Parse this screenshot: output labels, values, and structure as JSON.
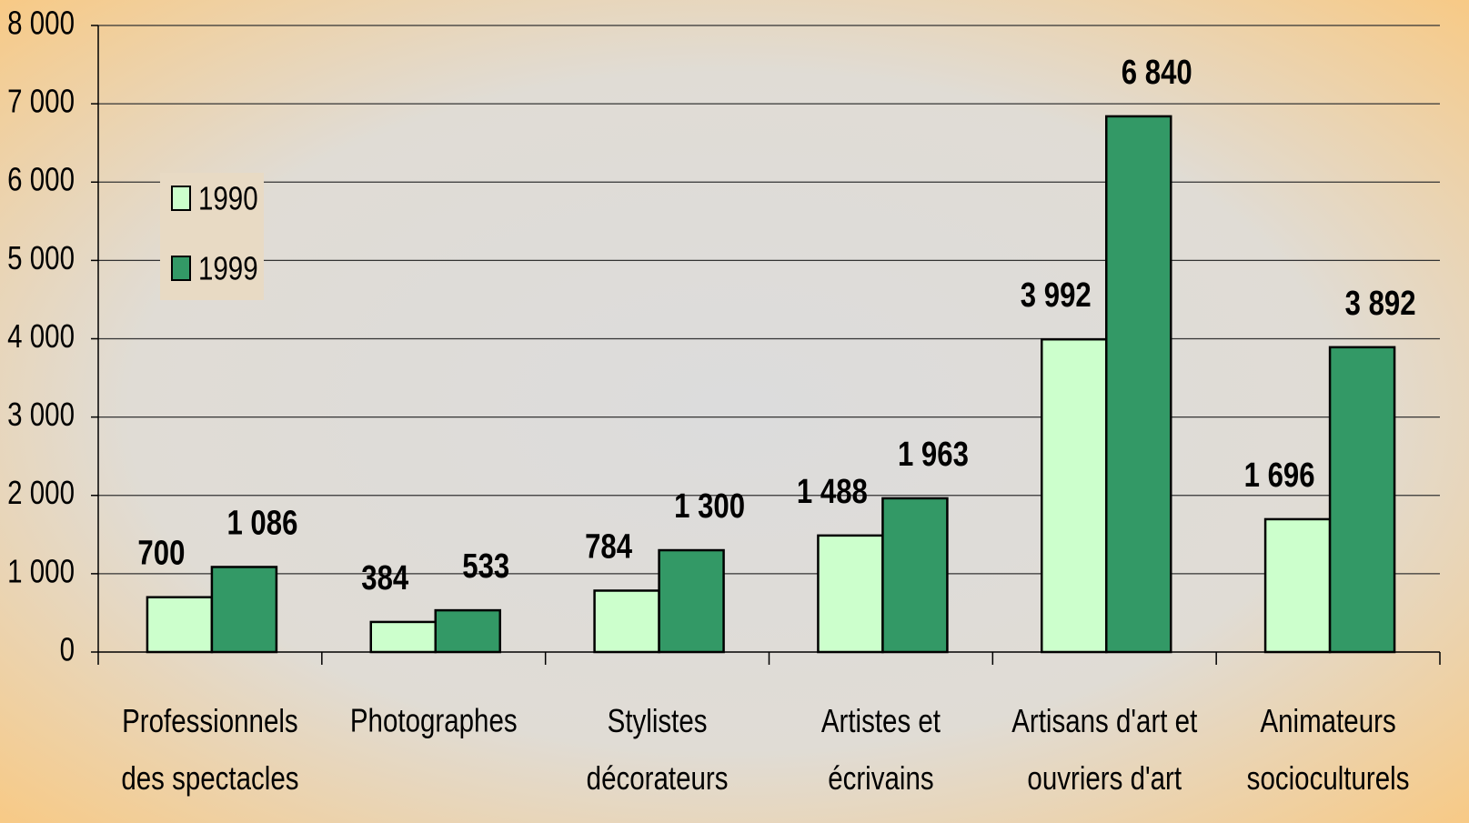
{
  "chart_data": {
    "type": "bar",
    "categories": [
      "Professionnels\ndes spectacles",
      "Photographes",
      "Stylistes\ndécorateurs",
      "Artistes et\nécrivains",
      "Artisans d'art et\nouvriers d'art",
      "Animateurs\nsocioculturels"
    ],
    "series": [
      {
        "name": "1990",
        "color": "#ccffcc",
        "values": [
          700,
          384,
          784,
          1488,
          3992,
          1696
        ],
        "value_labels": [
          "700",
          "384",
          "784",
          "1 488",
          "3 992",
          "1 696"
        ]
      },
      {
        "name": "1999",
        "color": "#339966",
        "values": [
          1086,
          533,
          1300,
          1963,
          6840,
          3892
        ],
        "value_labels": [
          "1 086",
          "533",
          "1 300",
          "1 963",
          "6 840",
          "3 892"
        ]
      }
    ],
    "ylim": [
      0,
      8000
    ],
    "yticks": [
      0,
      {
        "value": 1000,
        "label": "1 000"
      },
      {
        "value": 2000,
        "label": "2 000"
      },
      {
        "value": 3000,
        "label": "3 000"
      },
      {
        "value": 4000,
        "label": "4 000"
      },
      {
        "value": 5000,
        "label": "5 000"
      },
      {
        "value": 6000,
        "label": "6 000"
      },
      {
        "value": 7000,
        "label": "7 000"
      },
      {
        "value": 8000,
        "label": "8 000"
      }
    ],
    "grid": true,
    "legend": "upper left"
  }
}
